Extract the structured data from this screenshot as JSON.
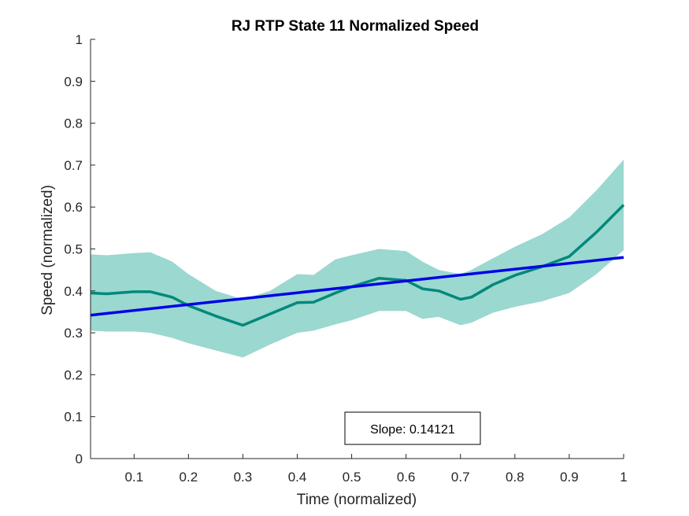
{
  "chart_data": {
    "type": "line",
    "title": "RJ  RTP State 11 Normalized Speed",
    "xlabel": "Time (normalized)",
    "ylabel": "Speed (normalized)",
    "xlim": [
      0.02,
      1.0
    ],
    "ylim": [
      0,
      1
    ],
    "xticks": [
      0.1,
      0.2,
      0.3,
      0.4,
      0.5,
      0.6,
      0.7,
      0.8,
      0.9,
      1
    ],
    "xtick_labels": [
      "0.1",
      "0.2",
      "0.3",
      "0.4",
      "0.5",
      "0.6",
      "0.7",
      "0.8",
      "0.9",
      "1"
    ],
    "yticks": [
      0,
      0.1,
      0.2,
      0.3,
      0.4,
      0.5,
      0.6,
      0.7,
      0.8,
      0.9,
      1
    ],
    "ytick_labels": [
      "0",
      "0.1",
      "0.2",
      "0.3",
      "0.4",
      "0.5",
      "0.6",
      "0.7",
      "0.8",
      "0.9",
      "1"
    ],
    "grid": false,
    "colors": {
      "mean": "#00897b",
      "band": "#9bd8cf",
      "fit": "#0000e6"
    },
    "series": [
      {
        "x": [
          0.02,
          0.05,
          0.1,
          0.13,
          0.17,
          0.2,
          0.25,
          0.3,
          0.35,
          0.4,
          0.43,
          0.47,
          0.5,
          0.55,
          0.6,
          0.63,
          0.66,
          0.7,
          0.72,
          0.76,
          0.8,
          0.85,
          0.9,
          0.95,
          1.0
        ],
        "y": [
          0.395,
          0.393,
          0.398,
          0.398,
          0.385,
          0.365,
          0.34,
          0.318,
          0.345,
          0.372,
          0.373,
          0.395,
          0.41,
          0.43,
          0.425,
          0.405,
          0.4,
          0.38,
          0.385,
          0.415,
          0.437,
          0.458,
          0.482,
          0.54,
          0.605
        ],
        "upper": [
          0.487,
          0.485,
          0.49,
          0.492,
          0.47,
          0.44,
          0.4,
          0.38,
          0.4,
          0.44,
          0.438,
          0.475,
          0.485,
          0.5,
          0.495,
          0.47,
          0.45,
          0.44,
          0.45,
          0.478,
          0.505,
          0.535,
          0.575,
          0.64,
          0.713
        ],
        "lower": [
          0.305,
          0.303,
          0.303,
          0.3,
          0.288,
          0.275,
          0.258,
          0.241,
          0.272,
          0.3,
          0.305,
          0.32,
          0.33,
          0.352,
          0.352,
          0.333,
          0.338,
          0.318,
          0.324,
          0.348,
          0.362,
          0.375,
          0.395,
          0.44,
          0.497
        ]
      },
      {
        "x": [
          0.02,
          1.0
        ],
        "y": [
          0.342,
          0.48
        ]
      }
    ],
    "annotation": {
      "text": "Slope: 0.14121"
    }
  }
}
